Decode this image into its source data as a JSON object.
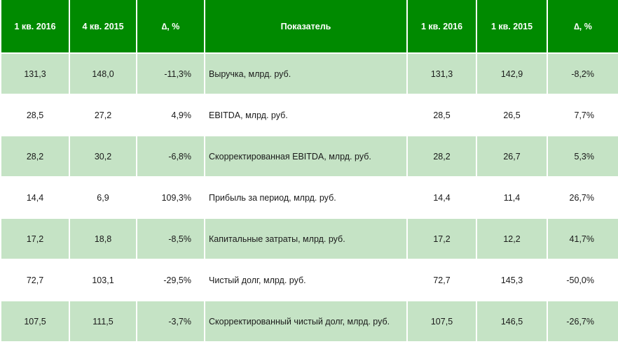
{
  "header": {
    "col1": "1 кв. 2016",
    "col2": "4 кв. 2015",
    "col3": "∆, %",
    "col4": "Показатель",
    "col5": "1 кв. 2016",
    "col6": "1 кв. 2015",
    "col7": "∆, %"
  },
  "rows": [
    {
      "q1_2016": "131,3",
      "q4_2015": "148,0",
      "delta_qoq": "-11,3%",
      "indicator": "Выручка, млрд. руб.",
      "q1_2016_b": "131,3",
      "q1_2015": "142,9",
      "delta_yoy": "-8,2%"
    },
    {
      "q1_2016": "28,5",
      "q4_2015": "27,2",
      "delta_qoq": "4,9%",
      "indicator": "EBITDA, млрд. руб.",
      "q1_2016_b": "28,5",
      "q1_2015": "26,5",
      "delta_yoy": "7,7%"
    },
    {
      "q1_2016": "28,2",
      "q4_2015": "30,2",
      "delta_qoq": "-6,8%",
      "indicator": "Скорректированная EBITDA, млрд. руб.",
      "q1_2016_b": "28,2",
      "q1_2015": "26,7",
      "delta_yoy": "5,3%"
    },
    {
      "q1_2016": "14,4",
      "q4_2015": "6,9",
      "delta_qoq": "109,3%",
      "indicator": "Прибыль за период, млрд. руб.",
      "q1_2016_b": "14,4",
      "q1_2015": "11,4",
      "delta_yoy": "26,7%"
    },
    {
      "q1_2016": "17,2",
      "q4_2015": "18,8",
      "delta_qoq": "-8,5%",
      "indicator": "Капитальные затраты, млрд. руб.",
      "q1_2016_b": "17,2",
      "q1_2015": "12,2",
      "delta_yoy": "41,7%"
    },
    {
      "q1_2016": "72,7",
      "q4_2015": "103,1",
      "delta_qoq": "-29,5%",
      "indicator": "Чистый долг, млрд. руб.",
      "q1_2016_b": "72,7",
      "q1_2015": "145,3",
      "delta_yoy": "-50,0%"
    },
    {
      "q1_2016": "107,5",
      "q4_2015": "111,5",
      "delta_qoq": "-3,7%",
      "indicator": "Скорректированный чистый долг, млрд. руб.",
      "q1_2016_b": "107,5",
      "q1_2015": "146,5",
      "delta_yoy": "-26,7%"
    }
  ],
  "colors": {
    "header_bg": "#008a00",
    "shaded_row_bg": "#c5e3c5",
    "plain_row_bg": "#ffffff"
  }
}
